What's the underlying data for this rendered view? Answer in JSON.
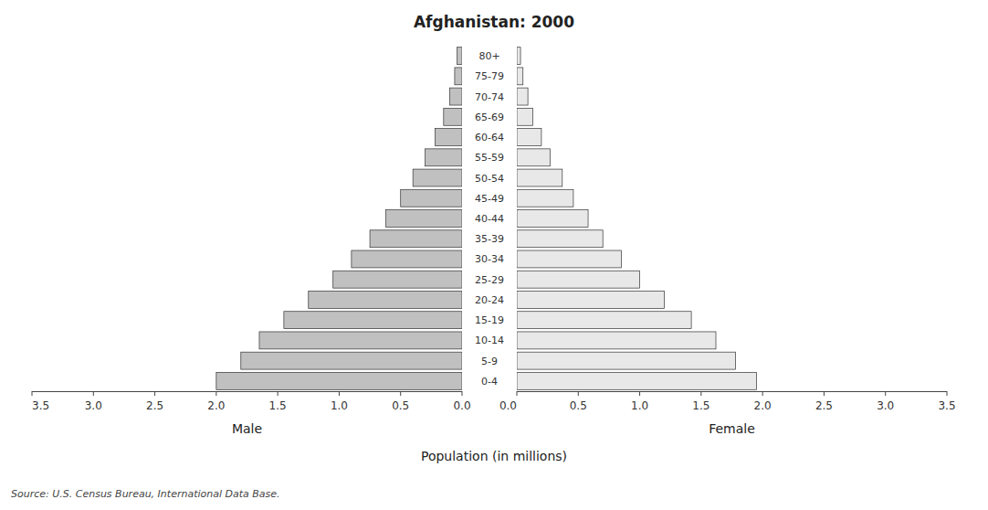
{
  "chart_data": {
    "type": "bar",
    "orientation": "horizontal",
    "title": "Afghanistan: 2000",
    "categories": [
      "0-4",
      "5-9",
      "10-14",
      "15-19",
      "20-24",
      "25-29",
      "30-34",
      "35-39",
      "40-44",
      "45-49",
      "50-54",
      "55-59",
      "60-64",
      "65-69",
      "70-74",
      "75-79",
      "80+"
    ],
    "series": [
      {
        "name": "Male",
        "color": "#c0c0c0",
        "values": [
          2.0,
          1.8,
          1.65,
          1.45,
          1.25,
          1.05,
          0.9,
          0.75,
          0.62,
          0.5,
          0.4,
          0.3,
          0.22,
          0.15,
          0.1,
          0.06,
          0.04
        ]
      },
      {
        "name": "Female",
        "color": "#e8e8e8",
        "values": [
          1.95,
          1.78,
          1.62,
          1.42,
          1.2,
          1.0,
          0.85,
          0.7,
          0.58,
          0.46,
          0.37,
          0.27,
          0.2,
          0.13,
          0.09,
          0.05,
          0.03
        ]
      }
    ],
    "xlabel": "Population (in millions)",
    "xlim": [
      0,
      3.5
    ],
    "xticks": [
      {
        "value": 0,
        "label": "0.0"
      },
      0.5,
      {
        "value": 1,
        "label": "1.0"
      },
      1.5,
      {
        "value": 2,
        "label": "2.0"
      },
      2.5,
      {
        "value": 3,
        "label": "3.0"
      },
      3.5
    ],
    "grid": false,
    "annotations": [
      "Source: U.S. Census Bureau, International Data Base."
    ]
  }
}
